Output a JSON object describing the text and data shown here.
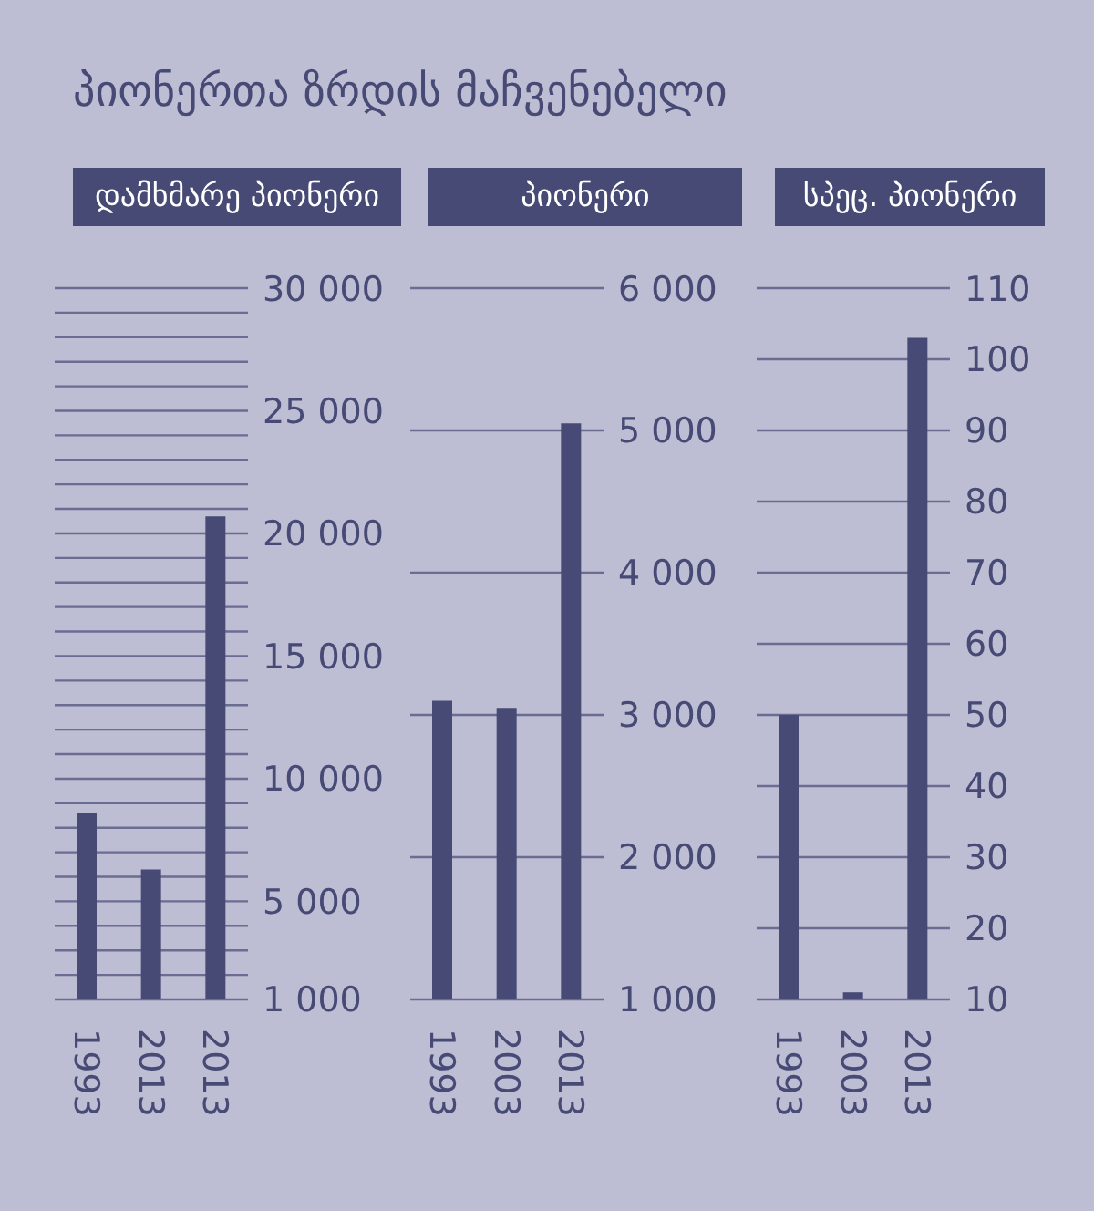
{
  "chart_data": [
    {
      "type": "bar",
      "title": "დამხმარე პიონერი",
      "annotations": [
        "პიონერთა ზრდის მაჩვენებელი"
      ],
      "categories": [
        "1993",
        "2013",
        "2013"
      ],
      "values": [
        8600,
        6300,
        20700
      ],
      "color": "#474a75",
      "ylim": [
        1000,
        30000
      ],
      "yticks": [
        {
          "value": 1000,
          "label": "1 000"
        },
        {
          "value": 2000,
          "label": null
        },
        {
          "value": 3000,
          "label": null
        },
        {
          "value": 4000,
          "label": null
        },
        {
          "value": 5000,
          "label": "5 000"
        },
        {
          "value": 6000,
          "label": null
        },
        {
          "value": 7000,
          "label": null
        },
        {
          "value": 8000,
          "label": null
        },
        {
          "value": 9000,
          "label": null
        },
        {
          "value": 10000,
          "label": "10 000"
        },
        {
          "value": 11000,
          "label": null
        },
        {
          "value": 12000,
          "label": null
        },
        {
          "value": 13000,
          "label": null
        },
        {
          "value": 14000,
          "label": null
        },
        {
          "value": 15000,
          "label": "15 000"
        },
        {
          "value": 16000,
          "label": null
        },
        {
          "value": 17000,
          "label": null
        },
        {
          "value": 18000,
          "label": null
        },
        {
          "value": 19000,
          "label": null
        },
        {
          "value": 20000,
          "label": "20 000"
        },
        {
          "value": 21000,
          "label": null
        },
        {
          "value": 22000,
          "label": null
        },
        {
          "value": 23000,
          "label": null
        },
        {
          "value": 24000,
          "label": null
        },
        {
          "value": 25000,
          "label": "25 000"
        },
        {
          "value": 26000,
          "label": null
        },
        {
          "value": 27000,
          "label": null
        },
        {
          "value": 28000,
          "label": null
        },
        {
          "value": 29000,
          "label": null
        },
        {
          "value": 30000,
          "label": "30 000"
        }
      ],
      "grid": "y"
    },
    {
      "type": "bar",
      "title": "პიონერი",
      "categories": [
        "1993",
        "2003",
        "2013"
      ],
      "values": [
        3100,
        3050,
        5050
      ],
      "color": "#474a75",
      "ylim": [
        1000,
        6000
      ],
      "yticks": [
        {
          "value": 1000,
          "label": "1 000"
        },
        {
          "value": 2000,
          "label": "2 000"
        },
        {
          "value": 3000,
          "label": "3 000"
        },
        {
          "value": 4000,
          "label": "4 000"
        },
        {
          "value": 5000,
          "label": "5 000"
        },
        {
          "value": 6000,
          "label": "6 000"
        }
      ],
      "grid": "y"
    },
    {
      "type": "bar",
      "title": "სპეც. პიონერი",
      "categories": [
        "1993",
        "2003",
        "2013"
      ],
      "values": [
        50,
        11,
        103
      ],
      "color": "#474a75",
      "ylim": [
        10,
        110
      ],
      "yticks": [
        10,
        20,
        30,
        40,
        50,
        60,
        70,
        80,
        90,
        100,
        110
      ],
      "grid": "y"
    }
  ]
}
